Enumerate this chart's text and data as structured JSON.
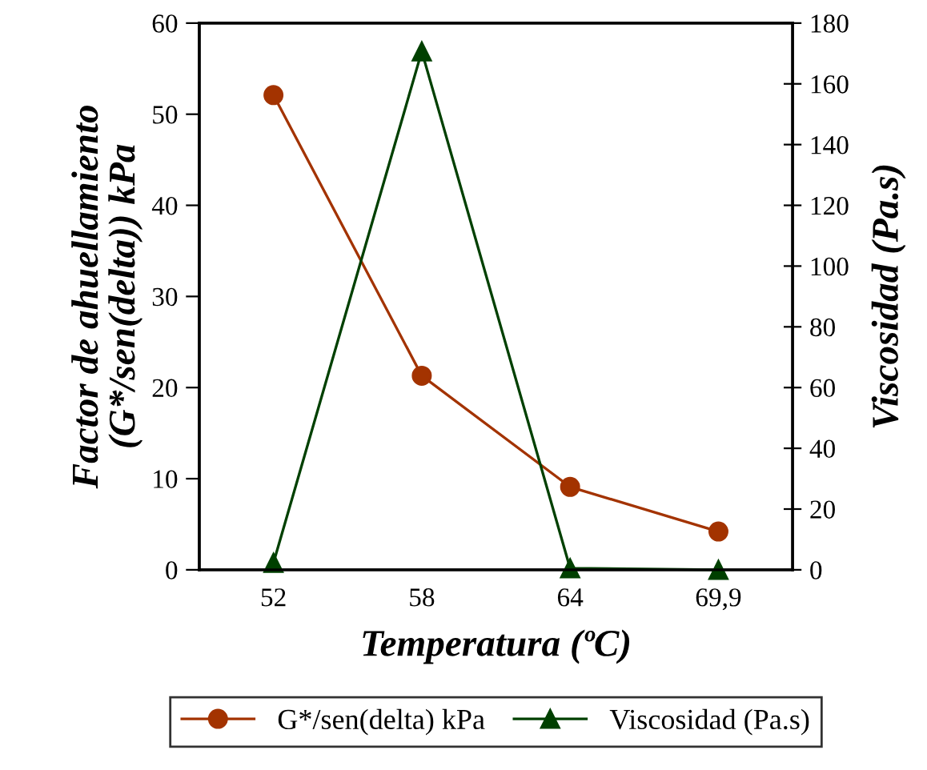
{
  "chart_data": {
    "type": "line",
    "xlabel": "Temperatura (ºC)",
    "ylabel": "Factor de ahuellamiento\n(G*/sen(delta)) kPa",
    "y2label": "Viscosidad (Pa.s)",
    "categories": [
      "52",
      "58",
      "64",
      "69,9"
    ],
    "series": [
      {
        "name": "G*/sen(delta) kPa",
        "color": "#a33300",
        "marker": "circle",
        "values": [
          52.1,
          21.3,
          9.1,
          4.2
        ]
      },
      {
        "name": "Viscosidad (Pa.s)",
        "color": "#004000",
        "marker": "triangle",
        "axis": "y2",
        "values": [
          2.3,
          170.7,
          0.5,
          0
        ]
      }
    ],
    "ylim": [
      0,
      60
    ],
    "yticks": [
      0,
      10,
      20,
      30,
      40,
      50,
      60
    ],
    "y2lim": [
      0,
      180
    ],
    "y2ticks": [
      0,
      20,
      40,
      60,
      80,
      100,
      120,
      140,
      160,
      180
    ],
    "grid": false,
    "legend": "bottom"
  }
}
